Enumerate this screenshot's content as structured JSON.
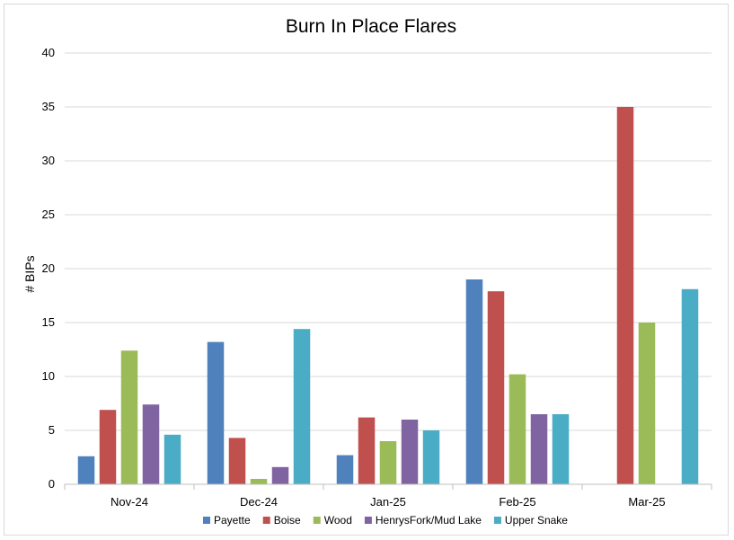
{
  "chart_data": {
    "type": "bar",
    "title": "Burn In Place Flares",
    "xlabel": "",
    "ylabel": "# BIPs",
    "ylim": [
      0,
      40
    ],
    "yticks": [
      "0",
      "5",
      "10",
      "15",
      "20",
      "25",
      "30",
      "35",
      "40"
    ],
    "categories": [
      "Nov-24",
      "Dec-24",
      "Jan-25",
      "Feb-25",
      "Mar-25"
    ],
    "grid": true,
    "legend_position": "bottom",
    "series": [
      {
        "name": "Payette",
        "color": "#4f81bd",
        "values": [
          2.6,
          13.2,
          2.7,
          19,
          0
        ]
      },
      {
        "name": "Boise",
        "color": "#c0504d",
        "values": [
          6.9,
          4.3,
          6.2,
          17.9,
          35
        ]
      },
      {
        "name": "Wood",
        "color": "#9bbb59",
        "values": [
          12.4,
          0.5,
          4.0,
          10.2,
          15
        ]
      },
      {
        "name": "HenrysFork/Mud Lake",
        "color": "#8064a2",
        "values": [
          7.4,
          1.6,
          6.0,
          6.5,
          0
        ]
      },
      {
        "name": "Upper Snake",
        "color": "#4bacc6",
        "values": [
          4.6,
          14.4,
          5.0,
          6.5,
          18.1
        ]
      }
    ]
  }
}
